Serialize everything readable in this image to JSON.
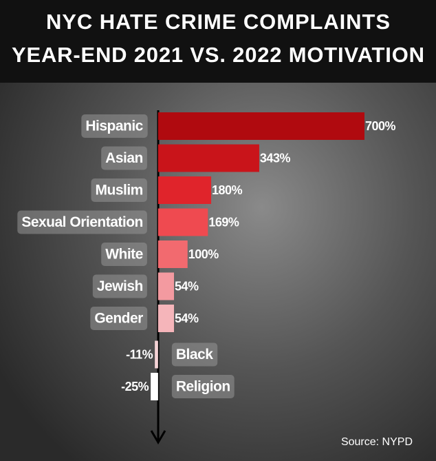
{
  "chart_data": {
    "type": "bar",
    "orientation": "horizontal",
    "title": [
      "NYC HATE CRIME COMPLAINTS",
      "YEAR-END 2021 VS. 2022 MOTIVATION"
    ],
    "categories": [
      "Hispanic",
      "Asian",
      "Muslim",
      "Sexual Orientation",
      "White",
      "Jewish",
      "Gender",
      "Black",
      "Religion"
    ],
    "values": [
      700,
      343,
      180,
      169,
      100,
      54,
      54,
      -11,
      -25
    ],
    "value_labels": [
      "700%",
      "343%",
      "180%",
      "169%",
      "100%",
      "54%",
      "54%",
      "-11%",
      "-25%"
    ],
    "colors": [
      "#b00a0f",
      "#c9141a",
      "#e0242b",
      "#ef4a50",
      "#f26a6f",
      "#f39aa0",
      "#f5b5ba",
      "#f5d3d6",
      "#ffffff"
    ],
    "xlim": [
      -30,
      700
    ],
    "source": "Source: NYPD"
  }
}
